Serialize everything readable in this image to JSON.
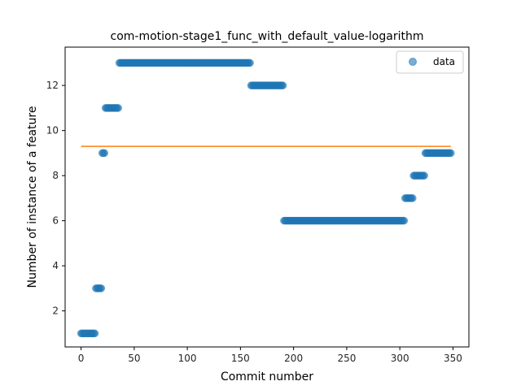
{
  "chart_data": {
    "type": "scatter",
    "title": "com-motion-stage1_func_with_default_value-logarithm",
    "xlabel": "Commit number",
    "ylabel": "Number of instance of a feature",
    "xlim": [
      -15,
      365
    ],
    "ylim": [
      0.4,
      13.7
    ],
    "xticks": [
      0,
      50,
      100,
      150,
      200,
      250,
      300,
      350
    ],
    "yticks": [
      2,
      4,
      6,
      8,
      10,
      12
    ],
    "grid": false,
    "legend": {
      "position": "top-right",
      "entries": [
        "data"
      ]
    },
    "colors": {
      "scatter": "#1f77b4",
      "trend": "#ff7f0e"
    },
    "series": [
      {
        "name": "data",
        "kind": "scatter",
        "segments": [
          {
            "x_start": 0,
            "x_end": 13,
            "y": 1
          },
          {
            "x_start": 14,
            "x_end": 19,
            "y": 3
          },
          {
            "x_start": 20,
            "x_end": 22,
            "y": 9
          },
          {
            "x_start": 23,
            "x_end": 35,
            "y": 11
          },
          {
            "x_start": 36,
            "x_end": 159,
            "y": 13
          },
          {
            "x_start": 160,
            "x_end": 190,
            "y": 12
          },
          {
            "x_start": 191,
            "x_end": 304,
            "y": 6
          },
          {
            "x_start": 305,
            "x_end": 312,
            "y": 7
          },
          {
            "x_start": 313,
            "x_end": 323,
            "y": 8
          },
          {
            "x_start": 324,
            "x_end": 348,
            "y": 9
          }
        ]
      },
      {
        "kind": "line",
        "x": [
          0,
          348
        ],
        "y": [
          9.3,
          9.3
        ]
      }
    ]
  }
}
